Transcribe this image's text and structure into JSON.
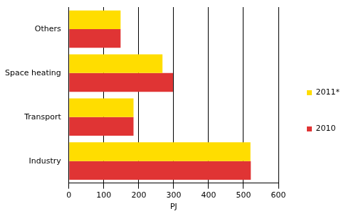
{
  "chart_data": {
    "type": "bar",
    "orientation": "horizontal",
    "categories": [
      "Others",
      "Space heating",
      "Transport",
      "Industry"
    ],
    "series": [
      {
        "name": "2011*",
        "color": "#ffdd00",
        "values": [
          148,
          268,
          185,
          520
        ]
      },
      {
        "name": "2010",
        "color": "#e03434",
        "values": [
          148,
          298,
          185,
          521
        ]
      }
    ],
    "x_label": "PJ",
    "xlim": [
      0,
      600
    ],
    "xticks": [
      0,
      100,
      200,
      300,
      400,
      500,
      600
    ],
    "grid": true,
    "legend": "right"
  }
}
